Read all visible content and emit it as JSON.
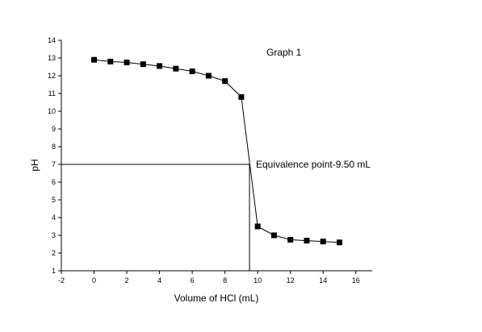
{
  "chart_data": {
    "type": "scatter",
    "title": "Graph 1",
    "xlabel": "Volume of HCl (mL)",
    "ylabel": "pH",
    "xlim": [
      -2,
      17
    ],
    "ylim": [
      1,
      14
    ],
    "xticks": [
      -2,
      0,
      2,
      4,
      6,
      8,
      10,
      12,
      14,
      16
    ],
    "yticks": [
      1,
      2,
      3,
      4,
      5,
      6,
      7,
      8,
      9,
      10,
      11,
      12,
      13,
      14
    ],
    "grid": false,
    "legend": "none",
    "marker": "square",
    "line_color": "#000000",
    "series": [
      {
        "x": [
          0,
          1,
          2,
          3,
          4,
          5,
          6,
          7,
          8,
          9,
          10,
          11,
          12,
          13,
          14,
          15
        ],
        "y": [
          12.9,
          12.8,
          12.75,
          12.65,
          12.55,
          12.4,
          12.25,
          12.0,
          11.7,
          10.8,
          3.5,
          3.0,
          2.75,
          2.7,
          2.65,
          2.6
        ]
      }
    ],
    "equivalence_point": {
      "x": 9.5,
      "y": 7
    },
    "annotation": "Equivalence point-9.50 mL"
  }
}
